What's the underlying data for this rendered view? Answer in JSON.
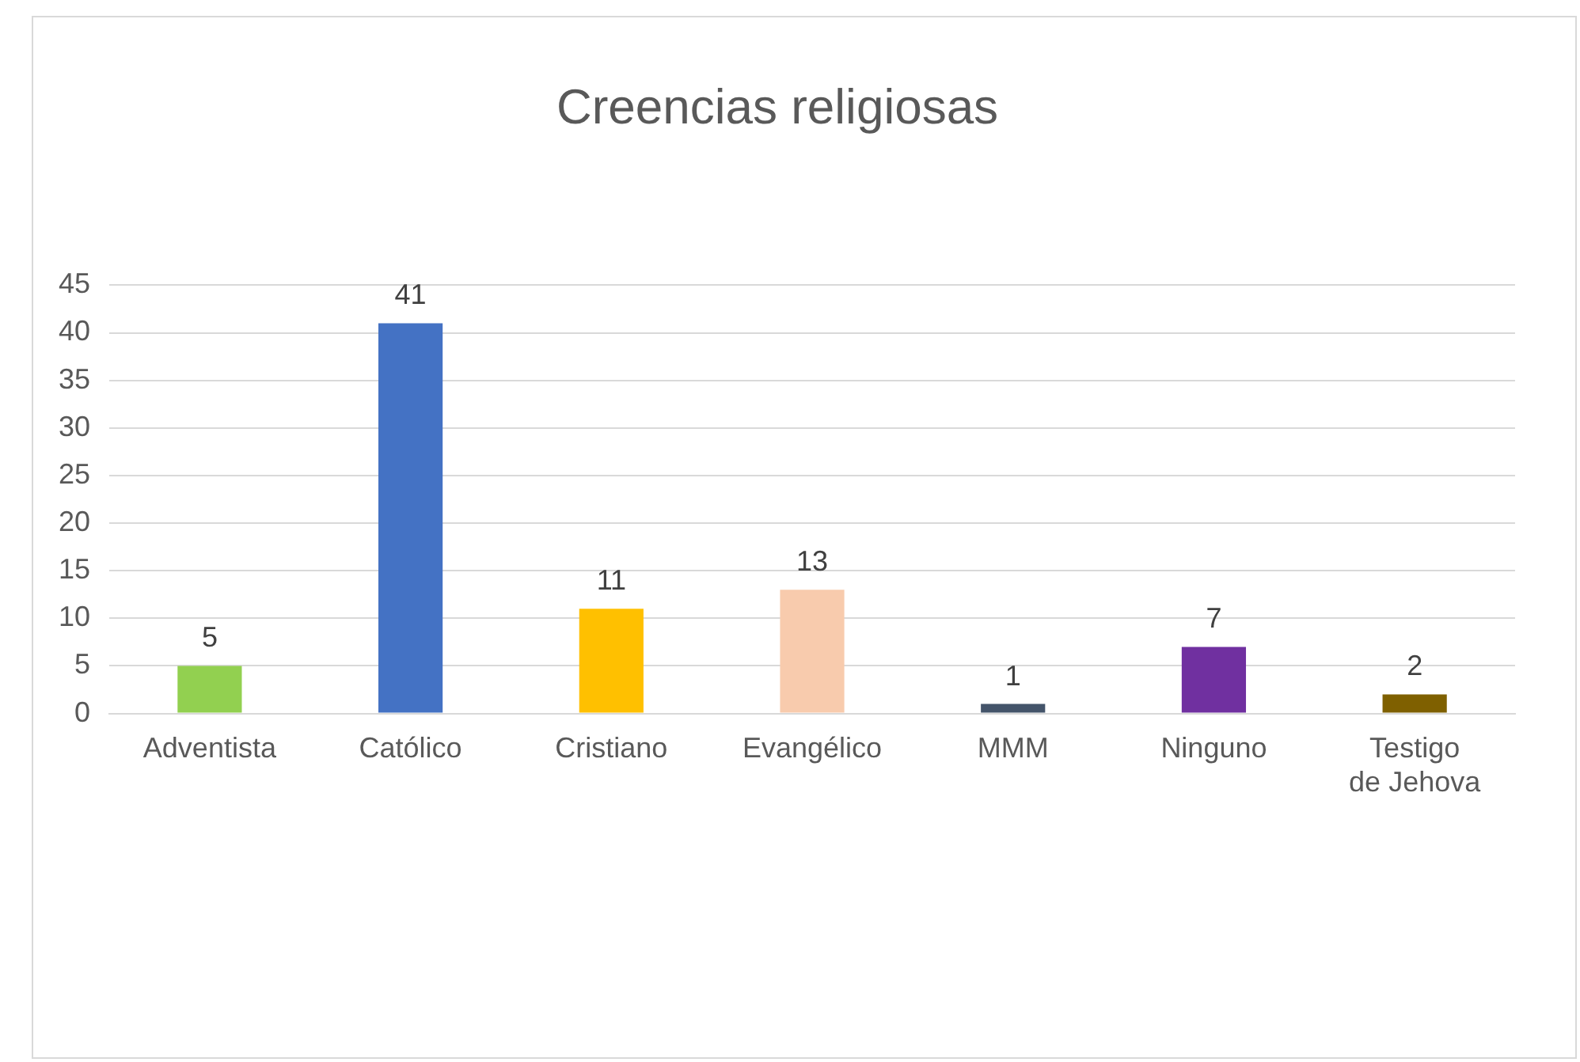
{
  "chart_data": {
    "type": "bar",
    "title": "Creencias religiosas",
    "categories": [
      "Adventista",
      "Católico",
      "Cristiano",
      "Evangélico",
      "MMM",
      "Ninguno",
      "Testigo de Jehova"
    ],
    "values": [
      5,
      41,
      11,
      13,
      1,
      7,
      2
    ],
    "colors": [
      "#92d050",
      "#4472c4",
      "#ffc000",
      "#f8cbad",
      "#44546a",
      "#7030a0",
      "#7f6000"
    ],
    "ylim": [
      0,
      45
    ],
    "yticks": [
      0,
      5,
      10,
      15,
      20,
      25,
      30,
      35,
      40,
      45
    ],
    "grid": "y",
    "legend": false,
    "data_labels": true
  }
}
